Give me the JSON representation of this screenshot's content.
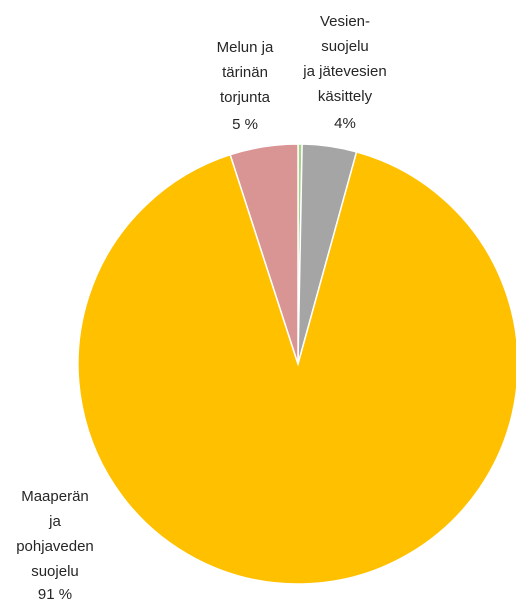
{
  "chart_data": {
    "type": "pie",
    "categories": [
      null,
      "Vesien-\nsuojelu\nja jätevesien\nkäsittely",
      "Maaperän\nja\npohjaveden\nsuojelu",
      "Melun ja\ntärinän\ntorjunta"
    ],
    "values": [
      0.3,
      4,
      91,
      5
    ],
    "value_labels": [
      null,
      "4%",
      "91 %",
      "5 %"
    ],
    "colors": [
      "#a9d18e",
      "#a5a5a5",
      "#ffc000",
      "#d99594"
    ]
  }
}
